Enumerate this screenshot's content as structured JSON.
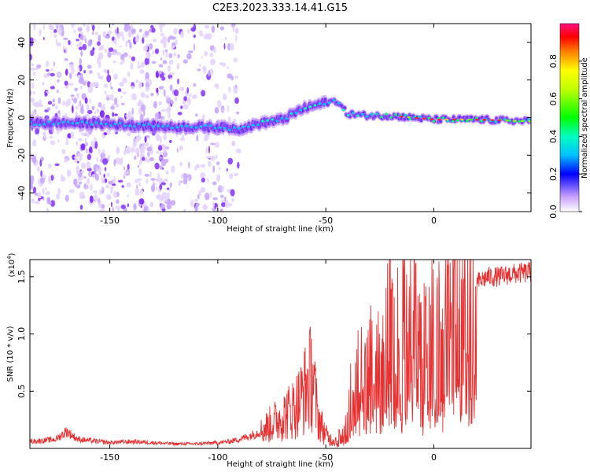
{
  "title": "C2E3.2023.333.14.41.G15",
  "chart_data": [
    {
      "type": "heatmap",
      "xlabel": "Height of straight line (km)",
      "ylabel": "Frequency (Hz)",
      "xlim": [
        -187,
        45
      ],
      "ylim": [
        -50,
        50
      ],
      "xticks": [
        -150,
        -100,
        -50,
        0
      ],
      "yticks": [
        -40,
        -20,
        0,
        20,
        40
      ],
      "colorbar": {
        "label": "Normalized spectral amplitude",
        "range": [
          0,
          1
        ],
        "ticks": [
          0.0,
          0.2,
          0.4,
          0.6,
          0.8
        ]
      },
      "ridge": [
        {
          "x": -185,
          "y": -3
        },
        {
          "x": -170,
          "y": -3
        },
        {
          "x": -160,
          "y": -3
        },
        {
          "x": -140,
          "y": -4
        },
        {
          "x": -120,
          "y": -5
        },
        {
          "x": -100,
          "y": -5
        },
        {
          "x": -90,
          "y": -6
        },
        {
          "x": -80,
          "y": -3
        },
        {
          "x": -70,
          "y": -1
        },
        {
          "x": -60,
          "y": 5
        },
        {
          "x": -50,
          "y": 8
        },
        {
          "x": -45,
          "y": 9
        },
        {
          "x": -40,
          "y": 2
        },
        {
          "x": -30,
          "y": 1
        },
        {
          "x": -20,
          "y": 1
        },
        {
          "x": -10,
          "y": 0
        },
        {
          "x": 0,
          "y": -1
        },
        {
          "x": 20,
          "y": -1
        },
        {
          "x": 45,
          "y": -2
        }
      ]
    },
    {
      "type": "line",
      "xlabel": "Height of straight line (km)",
      "ylabel": "SNR (10 * v/v)",
      "yscale_label": "(x10",
      "yscale_exp": "4",
      "yscale_close": ")",
      "xlim": [
        -187,
        45
      ],
      "ylim": [
        0,
        16500
      ],
      "xticks": [
        -150,
        -100,
        -50,
        0
      ],
      "yticks": [
        5000,
        10000,
        15000
      ],
      "ytick_labels": [
        "0.5",
        "1.0",
        "1.5"
      ],
      "line_color": "#e83030",
      "series": [
        {
          "x": [
            -187,
            -180,
            -175,
            -172,
            -170,
            -165,
            -160,
            -150,
            -140,
            -130,
            -120,
            -110,
            -100,
            -95,
            -90,
            -85,
            -80,
            -75,
            -70,
            -65,
            -62,
            -60,
            -58,
            -56,
            -54,
            -52,
            -50,
            -48,
            -45,
            -42,
            -40,
            -38,
            -35,
            -32,
            -30,
            -27,
            -25,
            -22,
            -20,
            -18,
            -15,
            -12,
            -10,
            -7,
            -5,
            -3,
            0,
            3,
            5,
            8,
            10,
            13,
            15,
            20,
            25,
            30,
            35,
            40,
            45
          ],
          "values": [
            600,
            700,
            800,
            1200,
            1500,
            800,
            700,
            500,
            600,
            500,
            400,
            400,
            500,
            600,
            800,
            1100,
            1500,
            2200,
            2800,
            3500,
            4200,
            5000,
            5800,
            6500,
            3000,
            2000,
            1200,
            800,
            700,
            1300,
            2200,
            4500,
            6500,
            5800,
            7000,
            6500,
            8500,
            9000,
            9500,
            8000,
            10000,
            10500,
            11000,
            8500,
            9000,
            8000,
            11000,
            10500,
            13000,
            12500,
            14000,
            13000,
            14000,
            14500,
            15000,
            15000,
            15200,
            15300,
            15400
          ]
        }
      ]
    }
  ]
}
